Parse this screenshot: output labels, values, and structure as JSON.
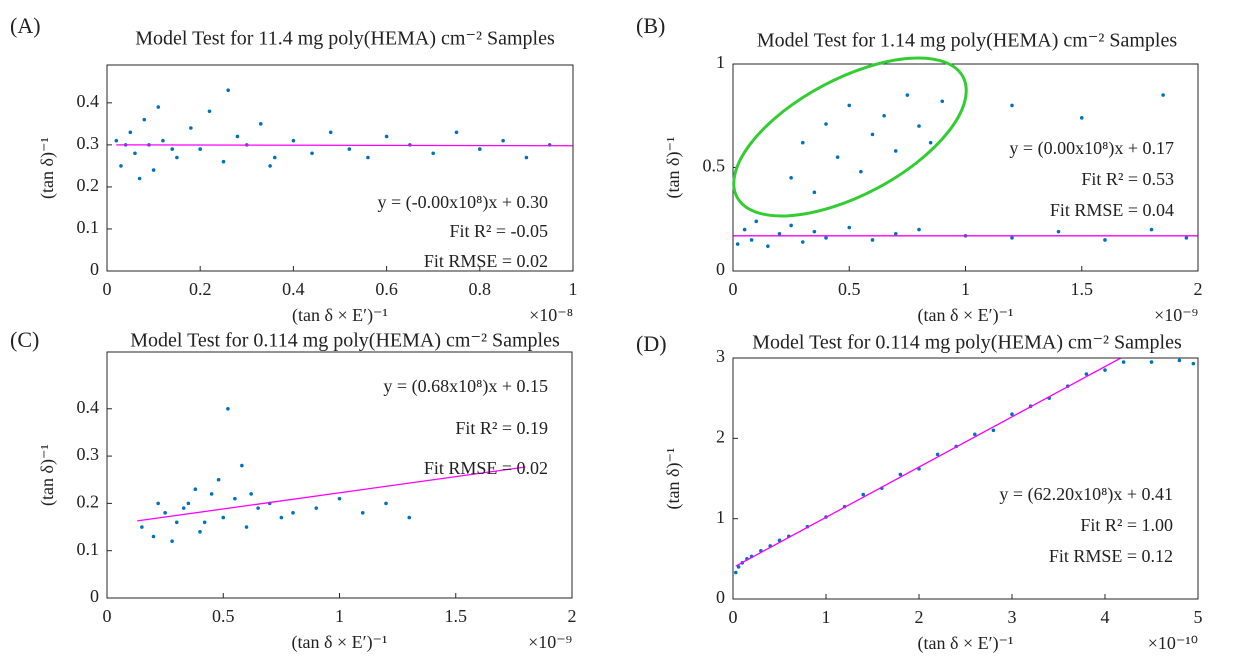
{
  "chart_data": [
    {
      "type": "scatter",
      "panel": "(A)",
      "title": "Model Test for 11.4 mg poly(HEMA) cm⁻² Samples",
      "xlabel": "(tan δ × E′)⁻¹",
      "ylabel": "(tan δ)⁻¹",
      "x_exponent": "×10⁻⁸",
      "xlim": [
        0,
        1
      ],
      "ylim": [
        0,
        0.49
      ],
      "xticks": [
        0,
        0.2,
        0.4,
        0.6,
        0.8,
        1
      ],
      "yticks": [
        0,
        0.1,
        0.2,
        0.3,
        0.4
      ],
      "color": "#0072bd",
      "x": [
        0.03,
        0.05,
        0.06,
        0.08,
        0.1,
        0.12,
        0.15,
        0.18,
        0.2,
        0.22,
        0.25,
        0.28,
        0.3,
        0.33,
        0.36,
        0.4,
        0.44,
        0.48,
        0.52,
        0.56,
        0.6,
        0.65,
        0.7,
        0.75,
        0.8,
        0.85,
        0.9,
        0.95,
        0.04,
        0.07,
        0.11,
        0.14,
        0.26,
        0.35,
        0.02,
        0.09
      ],
      "y": [
        0.25,
        0.33,
        0.28,
        0.36,
        0.24,
        0.31,
        0.27,
        0.34,
        0.29,
        0.38,
        0.26,
        0.32,
        0.3,
        0.35,
        0.27,
        0.31,
        0.28,
        0.33,
        0.29,
        0.27,
        0.32,
        0.3,
        0.28,
        0.33,
        0.29,
        0.31,
        0.27,
        0.3,
        0.3,
        0.22,
        0.39,
        0.29,
        0.43,
        0.25,
        0.31,
        0.3
      ],
      "fit": {
        "color": "#ff00ff",
        "x": [
          0.02,
          1
        ],
        "y": [
          0.3,
          0.298
        ]
      },
      "annotations": [
        "y = (-0.00x10⁸)x + 0.30",
        "Fit R² = -0.05",
        "Fit RMSE = 0.02"
      ]
    },
    {
      "type": "scatter",
      "panel": "(B)",
      "title": "Model Test for 1.14 mg poly(HEMA) cm⁻² Samples",
      "xlabel": "(tan δ × E′)⁻¹",
      "ylabel": "(tan δ)⁻¹",
      "x_exponent": "×10⁻⁹",
      "xlim": [
        0,
        2
      ],
      "ylim": [
        0,
        1
      ],
      "xticks": [
        0,
        0.5,
        1,
        1.5,
        2
      ],
      "yticks": [
        0,
        0.5,
        1
      ],
      "color": "#0072bd",
      "x": [
        0.02,
        0.05,
        0.08,
        0.1,
        0.15,
        0.2,
        0.25,
        0.3,
        0.35,
        0.4,
        0.5,
        0.6,
        0.7,
        0.8,
        1.0,
        1.2,
        1.4,
        1.6,
        1.8,
        1.95,
        0.25,
        0.3,
        0.35,
        0.4,
        0.45,
        0.5,
        0.55,
        0.6,
        0.65,
        0.7,
        0.75,
        0.8,
        0.85,
        0.9,
        1.2,
        1.5,
        1.85
      ],
      "y": [
        0.13,
        0.2,
        0.15,
        0.24,
        0.12,
        0.18,
        0.22,
        0.14,
        0.19,
        0.16,
        0.21,
        0.15,
        0.18,
        0.2,
        0.17,
        0.16,
        0.19,
        0.15,
        0.2,
        0.16,
        0.45,
        0.62,
        0.38,
        0.71,
        0.55,
        0.8,
        0.48,
        0.66,
        0.75,
        0.58,
        0.85,
        0.7,
        0.62,
        0.82,
        0.8,
        0.74,
        0.85
      ],
      "fit": {
        "color": "#ff00ff",
        "x": [
          0,
          2
        ],
        "y": [
          0.17,
          0.17
        ]
      },
      "annotations": [
        "y = (0.00x10⁸)x + 0.17",
        "Fit R² = 0.53",
        "Fit RMSE = 0.04"
      ]
    },
    {
      "type": "scatter",
      "panel": "(C)",
      "title": "Model Test for 0.114 mg poly(HEMA) cm⁻² Samples",
      "xlabel": "(tan δ × E′)⁻¹",
      "ylabel": "(tan δ)⁻¹",
      "x_exponent": "×10⁻⁹",
      "xlim": [
        0,
        2
      ],
      "ylim": [
        0,
        0.52
      ],
      "xticks": [
        0,
        0.5,
        1,
        1.5,
        2
      ],
      "yticks": [
        0,
        0.1,
        0.2,
        0.3,
        0.4
      ],
      "color": "#0072bd",
      "x": [
        0.15,
        0.2,
        0.25,
        0.3,
        0.35,
        0.4,
        0.45,
        0.5,
        0.55,
        0.6,
        0.65,
        0.7,
        0.75,
        0.8,
        0.9,
        1.0,
        1.1,
        1.2,
        1.3,
        0.22,
        0.28,
        0.38,
        0.48,
        0.52,
        0.58,
        0.42,
        0.33,
        0.62
      ],
      "y": [
        0.15,
        0.13,
        0.18,
        0.16,
        0.2,
        0.14,
        0.22,
        0.17,
        0.21,
        0.15,
        0.19,
        0.2,
        0.17,
        0.18,
        0.19,
        0.21,
        0.18,
        0.2,
        0.17,
        0.2,
        0.12,
        0.23,
        0.25,
        0.4,
        0.28,
        0.16,
        0.19,
        0.22
      ],
      "fit": {
        "color": "#ff00ff",
        "x": [
          0.13,
          1.8
        ],
        "y": [
          0.163,
          0.277
        ]
      },
      "annotations": [
        "y = (0.68x10⁸)x + 0.15",
        "Fit R² = 0.19",
        "Fit RMSE = 0.02"
      ]
    },
    {
      "type": "scatter",
      "panel": "(D)",
      "title": "Model Test for 0.114 mg poly(HEMA) cm⁻² Samples",
      "xlabel": "(tan δ × E′)⁻¹",
      "ylabel": "(tan δ)⁻¹",
      "x_exponent": "×10⁻¹⁰",
      "xlim": [
        0,
        5
      ],
      "ylim": [
        0,
        3
      ],
      "xticks": [
        0,
        1,
        2,
        3,
        4,
        5
      ],
      "yticks": [
        0,
        1,
        2,
        3
      ],
      "color": "#0072bd",
      "x": [
        0.03,
        0.06,
        0.1,
        0.15,
        0.2,
        0.3,
        0.4,
        0.5,
        0.6,
        0.8,
        1.0,
        1.2,
        1.4,
        1.6,
        1.8,
        2.0,
        2.2,
        2.4,
        2.6,
        2.8,
        3.0,
        3.2,
        3.4,
        3.6,
        3.8,
        4.0,
        4.2,
        4.5,
        4.8,
        4.95
      ],
      "y": [
        0.33,
        0.4,
        0.45,
        0.5,
        0.53,
        0.6,
        0.66,
        0.73,
        0.78,
        0.9,
        1.02,
        1.15,
        1.3,
        1.38,
        1.55,
        1.62,
        1.8,
        1.9,
        2.05,
        2.1,
        2.3,
        2.4,
        2.5,
        2.65,
        2.8,
        2.85,
        2.95,
        2.95,
        2.97,
        2.93
      ],
      "fit": {
        "color": "#ff00ff",
        "x": [
          0.03,
          4.17
        ],
        "y": [
          0.41,
          3.0
        ]
      },
      "annotations": [
        "y = (62.20x10⁸)x + 0.41",
        "Fit R² = 1.00",
        "Fit RMSE = 0.12"
      ]
    }
  ]
}
